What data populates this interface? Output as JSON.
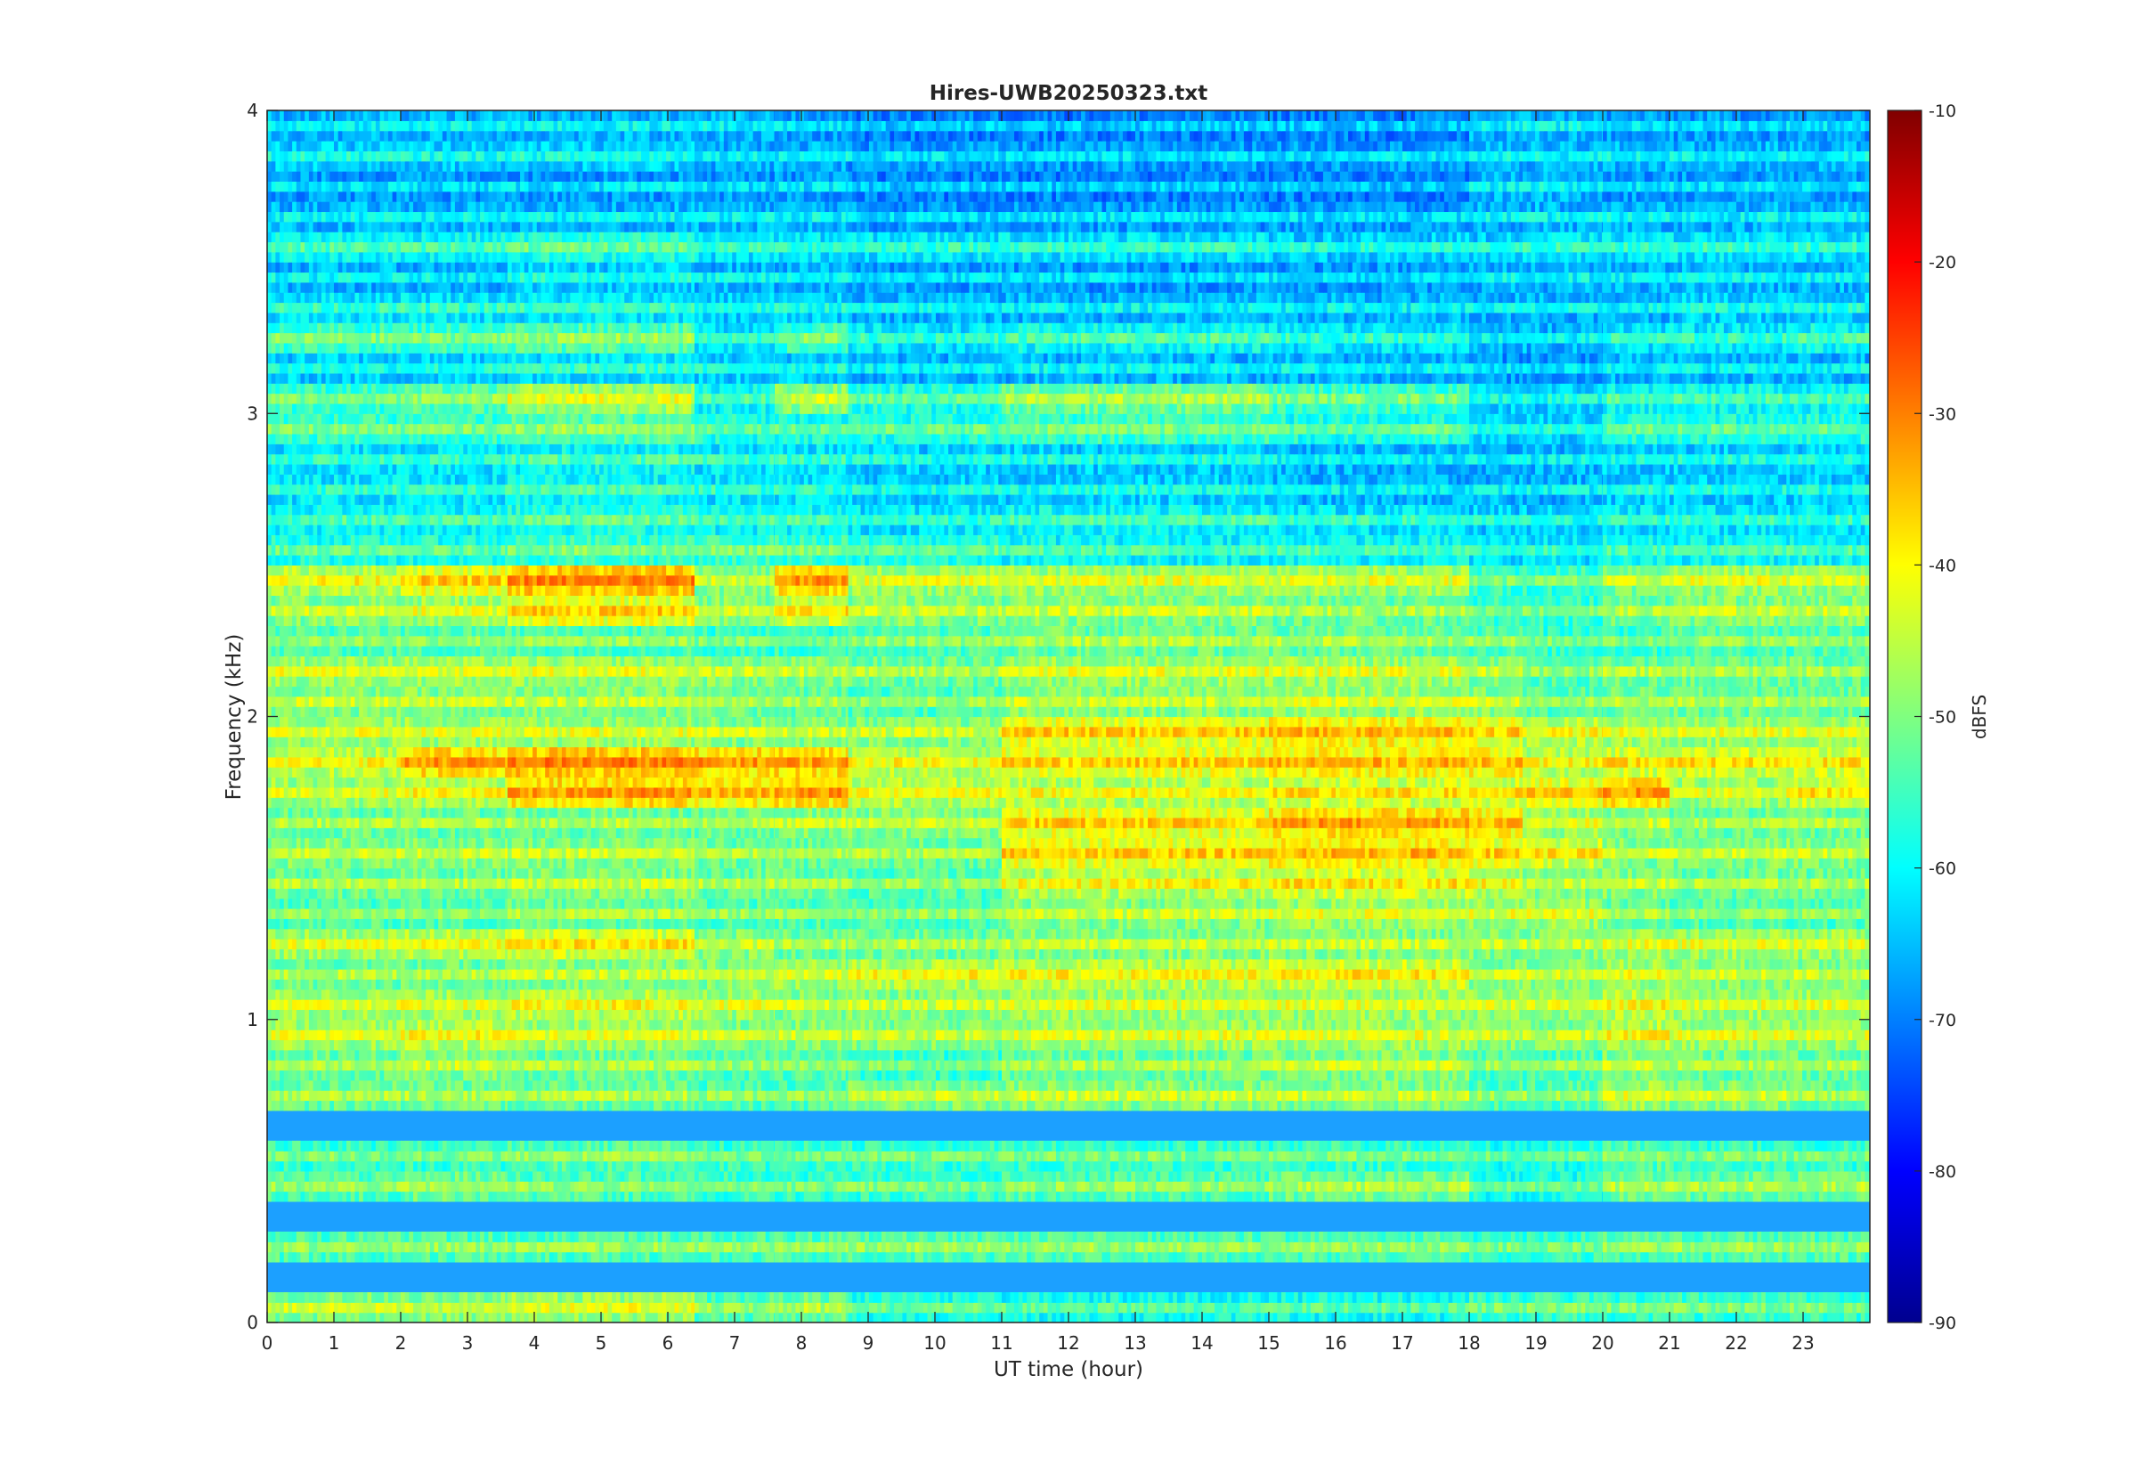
{
  "chart_data": {
    "type": "heatmap",
    "title": "Hires-UWB20250323.txt",
    "xlabel": "UT time (hour)",
    "ylabel": "Frequency (kHz)",
    "colorbar_label": "dBFS",
    "xlim": [
      0,
      24
    ],
    "ylim": [
      0,
      4
    ],
    "clim": [
      -90,
      -10
    ],
    "colormap": "jet",
    "x_ticks": [
      "0",
      "1",
      "2",
      "3",
      "4",
      "5",
      "6",
      "7",
      "8",
      "9",
      "10",
      "11",
      "12",
      "13",
      "14",
      "15",
      "16",
      "17",
      "18",
      "19",
      "20",
      "21",
      "22",
      "23"
    ],
    "y_ticks": [
      "0",
      "1",
      "2",
      "3",
      "4"
    ],
    "colorbar_ticks": [
      "-90",
      "-80",
      "-70",
      "-60",
      "-50",
      "-40",
      "-30",
      "-20",
      "-10"
    ],
    "time_segments_hour": [
      0,
      2,
      3.6,
      6.4,
      7.6,
      8.7,
      11,
      15,
      18,
      18.8,
      20,
      21,
      22.8,
      24
    ],
    "frequency_bands_khz": [
      0.05,
      0.25,
      0.45,
      0.55,
      0.75,
      0.85,
      0.95,
      1.05,
      1.15,
      1.25,
      1.35,
      1.45,
      1.55,
      1.65,
      1.75,
      1.85,
      1.95,
      2.05,
      2.15,
      2.25,
      2.35,
      2.45,
      2.55,
      2.65,
      2.75,
      2.85,
      2.95,
      3.05,
      3.15,
      3.25,
      3.35,
      3.45,
      3.55,
      3.65,
      3.75,
      3.85,
      3.95
    ],
    "band_levels_dbfs": [
      [
        -46,
        -46,
        -44,
        -50,
        -48,
        -54,
        -55,
        -55,
        -52,
        -52,
        -52,
        -52,
        -52
      ],
      [
        -50,
        -50,
        -50,
        -50,
        -50,
        -50,
        -50,
        -50,
        -52,
        -52,
        -50,
        -50,
        -50
      ],
      [
        -50,
        -48,
        -50,
        -52,
        -52,
        -52,
        -50,
        -48,
        -54,
        -54,
        -48,
        -48,
        -48
      ],
      [
        -52,
        -52,
        -50,
        -52,
        -52,
        -52,
        -52,
        -52,
        -54,
        -54,
        -50,
        -52,
        -52
      ],
      [
        -48,
        -48,
        -48,
        -50,
        -50,
        -46,
        -46,
        -46,
        -50,
        -50,
        -44,
        -46,
        -48
      ],
      [
        -48,
        -46,
        -48,
        -50,
        -50,
        -52,
        -48,
        -46,
        -50,
        -50,
        -46,
        -48,
        -48
      ],
      [
        -44,
        -42,
        -44,
        -46,
        -46,
        -46,
        -44,
        -44,
        -46,
        -46,
        -42,
        -44,
        -44
      ],
      [
        -44,
        -44,
        -42,
        -44,
        -46,
        -46,
        -44,
        -44,
        -44,
        -44,
        -42,
        -44,
        -44
      ],
      [
        -48,
        -48,
        -46,
        -46,
        -44,
        -42,
        -42,
        -40,
        -46,
        -46,
        -44,
        -46,
        -46
      ],
      [
        -44,
        -42,
        -40,
        -46,
        -48,
        -48,
        -46,
        -46,
        -46,
        -46,
        -44,
        -44,
        -44
      ],
      [
        -50,
        -50,
        -48,
        -50,
        -50,
        -50,
        -46,
        -44,
        -44,
        -44,
        -48,
        -50,
        -50
      ],
      [
        -48,
        -48,
        -46,
        -48,
        -48,
        -50,
        -42,
        -40,
        -42,
        -46,
        -46,
        -48,
        -48
      ],
      [
        -46,
        -46,
        -46,
        -48,
        -48,
        -48,
        -38,
        -36,
        -38,
        -40,
        -46,
        -46,
        -46
      ],
      [
        -48,
        -48,
        -48,
        -48,
        -46,
        -46,
        -38,
        -34,
        -36,
        -44,
        -46,
        -48,
        -48
      ],
      [
        -44,
        -42,
        -34,
        -36,
        -34,
        -42,
        -42,
        -40,
        -40,
        -38,
        -34,
        -44,
        -40
      ],
      [
        -42,
        -34,
        -32,
        -34,
        -34,
        -42,
        -38,
        -36,
        -36,
        -42,
        -40,
        -40,
        -40
      ],
      [
        -44,
        -44,
        -44,
        -46,
        -46,
        -46,
        -38,
        -36,
        -38,
        -42,
        -44,
        -44,
        -44
      ],
      [
        -46,
        -46,
        -46,
        -48,
        -48,
        -50,
        -46,
        -44,
        -46,
        -50,
        -48,
        -48,
        -48
      ],
      [
        -44,
        -44,
        -44,
        -46,
        -46,
        -48,
        -44,
        -44,
        -46,
        -50,
        -48,
        -48,
        -48
      ],
      [
        -50,
        -50,
        -50,
        -52,
        -52,
        -50,
        -48,
        -48,
        -50,
        -52,
        -52,
        -50,
        -50
      ],
      [
        -46,
        -44,
        -38,
        -46,
        -40,
        -46,
        -46,
        -48,
        -52,
        -52,
        -48,
        -46,
        -46
      ],
      [
        -42,
        -38,
        -32,
        -46,
        -34,
        -44,
        -44,
        -44,
        -52,
        -52,
        -46,
        -44,
        -44
      ],
      [
        -54,
        -54,
        -52,
        -52,
        -52,
        -54,
        -56,
        -56,
        -58,
        -58,
        -56,
        -56,
        -56
      ],
      [
        -56,
        -56,
        -54,
        -56,
        -56,
        -58,
        -56,
        -58,
        -60,
        -60,
        -58,
        -58,
        -58
      ],
      [
        -58,
        -58,
        -56,
        -58,
        -58,
        -60,
        -60,
        -62,
        -62,
        -62,
        -60,
        -60,
        -60
      ],
      [
        -58,
        -58,
        -56,
        -58,
        -58,
        -60,
        -60,
        -62,
        -62,
        -62,
        -60,
        -60,
        -60
      ],
      [
        -52,
        -52,
        -50,
        -54,
        -54,
        -54,
        -52,
        -54,
        -60,
        -60,
        -54,
        -54,
        -54
      ],
      [
        -52,
        -50,
        -44,
        -56,
        -46,
        -54,
        -48,
        -52,
        -60,
        -60,
        -56,
        -56,
        -56
      ],
      [
        -60,
        -60,
        -58,
        -60,
        -60,
        -62,
        -62,
        -62,
        -64,
        -64,
        -62,
        -62,
        -62
      ],
      [
        -52,
        -52,
        -50,
        -58,
        -52,
        -58,
        -56,
        -58,
        -62,
        -62,
        -58,
        -58,
        -56
      ],
      [
        -58,
        -58,
        -58,
        -60,
        -60,
        -62,
        -62,
        -62,
        -62,
        -62,
        -62,
        -60,
        -60
      ],
      [
        -62,
        -62,
        -60,
        -62,
        -62,
        -64,
        -64,
        -64,
        -62,
        -62,
        -62,
        -62,
        -62
      ],
      [
        -56,
        -56,
        -54,
        -58,
        -58,
        -58,
        -58,
        -60,
        -60,
        -58,
        -58,
        -58,
        -58
      ],
      [
        -62,
        -62,
        -62,
        -62,
        -62,
        -64,
        -64,
        -64,
        -62,
        -62,
        -62,
        -62,
        -62
      ],
      [
        -64,
        -64,
        -64,
        -64,
        -64,
        -66,
        -66,
        -66,
        -62,
        -62,
        -64,
        -64,
        -64
      ],
      [
        -60,
        -60,
        -60,
        -62,
        -62,
        -64,
        -64,
        -64,
        -62,
        -62,
        -62,
        -62,
        -62
      ],
      [
        -62,
        -62,
        -62,
        -62,
        -64,
        -66,
        -66,
        -66,
        -62,
        -62,
        -64,
        -64,
        -64
      ]
    ]
  }
}
